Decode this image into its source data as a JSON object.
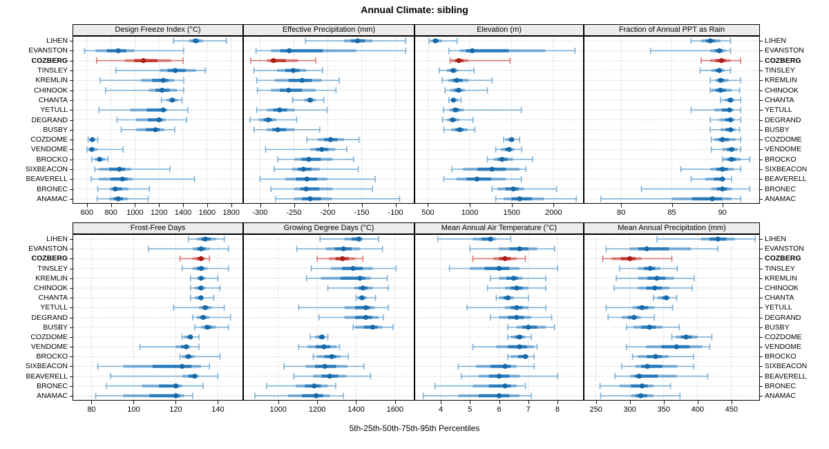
{
  "title": "Annual Climate: sibling",
  "footer": "5th-25th-50th-75th-95th Percentiles",
  "colors": {
    "normal": {
      "whisker": "#6fa8d4",
      "bar": "#2b7bba",
      "dot": "#1668a7"
    },
    "highlight": {
      "whisker": "#d26a62",
      "bar": "#c53a32",
      "dot": "#a81d15"
    },
    "grid": "#bdbdbd",
    "strip_bg": "#ececec",
    "border": "#000000"
  },
  "chart_data": {
    "type": "dot-interval (5th-25th-50th-75th-95th percentile ranges per location)",
    "percentiles": [
      5,
      25,
      50,
      75,
      95
    ],
    "legend_position": "none",
    "grid": "dashed",
    "highlight": "COZBERG",
    "locations": [
      "LIHEN",
      "EVANSTON",
      "COZBERG",
      "TINSLEY",
      "KREMLIN",
      "CHINOOK",
      "CHANTA",
      "YETULL",
      "DEGRAND",
      "BUSBY",
      "COZDOME",
      "VENDOME",
      "BROCKO",
      "SIXBEACON",
      "BEAVERELL",
      "BRONEC",
      "ANAMAC"
    ],
    "panels": [
      {
        "title": "Design Freeze Index (°C)",
        "grid_row": 0,
        "xlim": [
          480,
          1900
        ],
        "ticks": [
          600,
          800,
          1000,
          1200,
          1400,
          1600,
          1800
        ],
        "values": {
          "LIHEN": [
            1320,
            1450,
            1505,
            1565,
            1760
          ],
          "EVANSTON": [
            580,
            670,
            860,
            995,
            1405
          ],
          "COZBERG": [
            680,
            915,
            1070,
            1300,
            1400
          ],
          "TINSLEY": [
            840,
            1205,
            1335,
            1505,
            1585
          ],
          "KREMLIN": [
            710,
            1050,
            1235,
            1325,
            1405
          ],
          "CHINOOK": [
            755,
            1115,
            1225,
            1350,
            1405
          ],
          "CHANTA": [
            1220,
            1265,
            1310,
            1355,
            1390
          ],
          "YETULL": [
            700,
            960,
            1235,
            1270,
            1440
          ],
          "DEGRAND": [
            850,
            1010,
            1200,
            1255,
            1430
          ],
          "BUSBY": [
            885,
            1010,
            1170,
            1245,
            1330
          ],
          "COZDOME": [
            610,
            620,
            645,
            670,
            690
          ],
          "VENDOME": [
            600,
            610,
            640,
            685,
            900
          ],
          "BROCKO": [
            640,
            665,
            705,
            750,
            775
          ],
          "SIXBEACON": [
            665,
            700,
            870,
            965,
            1290
          ],
          "BEAVERELL": [
            635,
            700,
            895,
            980,
            1495
          ],
          "BRONEC": [
            690,
            790,
            835,
            945,
            1120
          ],
          "ANAMAC": [
            685,
            785,
            860,
            940,
            1110
          ]
        }
      },
      {
        "title": "Effective Precipitation (mm)",
        "grid_row": 0,
        "xlim": [
          -325,
          -72
        ],
        "ticks": [
          -300,
          -250,
          -200,
          -150,
          -100
        ],
        "values": {
          "LIHEN": [
            -233,
            -176,
            -156,
            -134,
            -85
          ],
          "EVANSTON": [
            -306,
            -284,
            -257,
            -158,
            -85
          ],
          "COZBERG": [
            -314,
            -290,
            -280,
            -244,
            -218
          ],
          "TINSLEY": [
            -309,
            -275,
            -251,
            -232,
            -208
          ],
          "KREMLIN": [
            -305,
            -278,
            -238,
            -209,
            -183
          ],
          "CHINOOK": [
            -304,
            -284,
            -258,
            -218,
            -188
          ],
          "CHANTA": [
            -252,
            -235,
            -226,
            -218,
            -206
          ],
          "YETULL": [
            -305,
            -290,
            -271,
            -249,
            -201
          ],
          "DEGRAND": [
            -315,
            -302,
            -288,
            -276,
            -246
          ],
          "BUSBY": [
            -309,
            -290,
            -274,
            -249,
            -212
          ],
          "COZDOME": [
            -231,
            -215,
            -196,
            -176,
            -154
          ],
          "VENDOME": [
            -292,
            -226,
            -209,
            -189,
            -172
          ],
          "BROCKO": [
            -274,
            -249,
            -228,
            -193,
            -162
          ],
          "SIXBEACON": [
            -279,
            -253,
            -236,
            -212,
            -155
          ],
          "BEAVERELL": [
            -300,
            -263,
            -231,
            -201,
            -130
          ],
          "BRONEC": [
            -284,
            -249,
            -232,
            -193,
            -134
          ],
          "ANAMAC": [
            -277,
            -250,
            -226,
            -194,
            -94
          ]
        }
      },
      {
        "title": "Elevation (m)",
        "grid_row": 0,
        "xlim": [
          340,
          2360
        ],
        "ticks": [
          500,
          1000,
          1500,
          2000
        ],
        "values": {
          "LIHEN": [
            515,
            535,
            590,
            665,
            850
          ],
          "EVANSTON": [
            750,
            880,
            1030,
            1900,
            2255
          ],
          "COZBERG": [
            765,
            780,
            870,
            980,
            1480
          ],
          "TINSLEY": [
            635,
            725,
            805,
            860,
            1050
          ],
          "KREMLIN": [
            670,
            745,
            845,
            985,
            1265
          ],
          "CHINOOK": [
            705,
            765,
            865,
            940,
            1210
          ],
          "CHANTA": [
            750,
            770,
            805,
            860,
            895
          ],
          "YETULL": [
            685,
            755,
            830,
            925,
            1615
          ],
          "DEGRAND": [
            675,
            730,
            795,
            875,
            1040
          ],
          "BUSBY": [
            690,
            780,
            880,
            975,
            1060
          ],
          "COZDOME": [
            1405,
            1430,
            1500,
            1530,
            1595
          ],
          "VENDOME": [
            1310,
            1370,
            1470,
            1530,
            1620
          ],
          "BROCKO": [
            1210,
            1285,
            1385,
            1515,
            1750
          ],
          "SIXBEACON": [
            785,
            920,
            1265,
            1595,
            1670
          ],
          "BEAVERELL": [
            690,
            840,
            1085,
            1425,
            1615
          ],
          "BRONEC": [
            1265,
            1330,
            1520,
            1645,
            2035
          ],
          "ANAMAC": [
            1310,
            1405,
            1595,
            1885,
            2270
          ]
        }
      },
      {
        "title": "Fraction of Annual PPT as Rain",
        "grid_row": 0,
        "xlim": [
          76.3,
          93.7
        ],
        "ticks": [
          80,
          85,
          90
        ],
        "values": {
          "LIHEN": [
            86.9,
            87.9,
            88.8,
            89.8,
            90.8
          ],
          "EVANSTON": [
            82.9,
            88.8,
            89.7,
            90.3,
            90.8
          ],
          "COZBERG": [
            87.9,
            88.8,
            89.9,
            90.8,
            91.8
          ],
          "TINSLEY": [
            87.8,
            88.9,
            89.7,
            90.2,
            90.8
          ],
          "KREMLIN": [
            88.8,
            89.3,
            89.8,
            90.6,
            91.8
          ],
          "CHINOOK": [
            88.8,
            88.9,
            89.8,
            90.9,
            91.7
          ],
          "CHANTA": [
            89.8,
            90.2,
            90.8,
            91.2,
            91.8
          ],
          "YETULL": [
            86.9,
            89.2,
            90.7,
            91.1,
            91.8
          ],
          "DEGRAND": [
            88.8,
            89.7,
            90.8,
            91.2,
            91.8
          ],
          "BUSBY": [
            88.8,
            89.8,
            90.8,
            91.3,
            91.7
          ],
          "COZDOME": [
            88.9,
            89.2,
            90.0,
            91.3,
            91.8
          ],
          "VENDOME": [
            88.9,
            90.0,
            90.9,
            91.5,
            91.8
          ],
          "BROCKO": [
            90.0,
            90.1,
            90.9,
            91.8,
            92.7
          ],
          "SIXBEACON": [
            85.9,
            88.8,
            90.0,
            91.1,
            91.8
          ],
          "BEAVERELL": [
            86.9,
            88.3,
            90.0,
            90.3,
            90.9
          ],
          "BRONEC": [
            82.0,
            88.9,
            90.0,
            90.9,
            92.7
          ],
          "ANAMAC": [
            78.0,
            85.0,
            89.0,
            90.9,
            91.8
          ]
        }
      },
      {
        "title": "Frost-Free Days",
        "grid_row": 1,
        "xlim": [
          71,
          152
        ],
        "ticks": [
          80,
          100,
          120,
          140
        ],
        "values": {
          "LIHEN": [
            126,
            130,
            134,
            139,
            143
          ],
          "EVANSTON": [
            107,
            128,
            132,
            136,
            145
          ],
          "COZBERG": [
            122,
            128,
            132,
            134,
            136
          ],
          "TINSLEY": [
            123,
            128,
            132,
            135,
            145
          ],
          "KREMLIN": [
            127,
            130,
            132,
            134,
            140
          ],
          "CHINOOK": [
            127,
            129,
            132,
            134,
            141
          ],
          "CHANTA": [
            127,
            129,
            132,
            133,
            138
          ],
          "YETULL": [
            119,
            131,
            134,
            137,
            143
          ],
          "DEGRAND": [
            128,
            130,
            133,
            136,
            146
          ],
          "BUSBY": [
            129,
            132,
            135,
            139,
            145
          ],
          "COZDOME": [
            123,
            124,
            127,
            128,
            131
          ],
          "VENDOME": [
            103,
            120,
            125,
            127,
            131
          ],
          "BROCKO": [
            122,
            123,
            126,
            129,
            141
          ],
          "SIXBEACON": [
            83,
            95,
            123,
            132,
            136
          ],
          "BEAVERELL": [
            89,
            123,
            129,
            131,
            140
          ],
          "BRONEC": [
            87,
            104,
            120,
            123,
            133
          ],
          "ANAMAC": [
            82,
            95,
            120,
            124,
            128
          ]
        }
      },
      {
        "title": "Growing Degree Days (°C)",
        "grid_row": 1,
        "xlim": [
          820,
          1700
        ],
        "ticks": [
          1000,
          1200,
          1400,
          1600
        ],
        "values": {
          "LIHEN": [
            1215,
            1340,
            1415,
            1435,
            1515
          ],
          "EVANSTON": [
            1095,
            1245,
            1335,
            1420,
            1535
          ],
          "COZBERG": [
            1200,
            1260,
            1330,
            1395,
            1435
          ],
          "TINSLEY": [
            1170,
            1270,
            1385,
            1485,
            1605
          ],
          "KREMLIN": [
            1145,
            1220,
            1420,
            1475,
            1560
          ],
          "CHINOOK": [
            1255,
            1390,
            1435,
            1485,
            1565
          ],
          "CHANTA": [
            1400,
            1405,
            1430,
            1455,
            1500
          ],
          "YETULL": [
            1105,
            1340,
            1450,
            1495,
            1565
          ],
          "DEGRAND": [
            1210,
            1340,
            1450,
            1515,
            1540
          ],
          "BUSBY": [
            1385,
            1395,
            1485,
            1535,
            1590
          ],
          "COZDOME": [
            1165,
            1190,
            1225,
            1240,
            1255
          ],
          "VENDOME": [
            1105,
            1150,
            1235,
            1300,
            1315
          ],
          "BROCKO": [
            1180,
            1200,
            1275,
            1320,
            1360
          ],
          "SIXBEACON": [
            1030,
            1140,
            1240,
            1355,
            1440
          ],
          "BEAVERELL": [
            1080,
            1180,
            1265,
            1350,
            1475
          ],
          "BRONEC": [
            940,
            1090,
            1185,
            1255,
            1295
          ],
          "ANAMAC": [
            880,
            1050,
            1195,
            1265,
            1335
          ]
        }
      },
      {
        "title": "Mean Annual Air Temperature (°C)",
        "grid_row": 1,
        "xlim": [
          3.1,
          8.9
        ],
        "ticks": [
          4,
          5,
          6,
          7,
          8
        ],
        "values": {
          "LIHEN": [
            3.9,
            5.1,
            5.7,
            5.9,
            6.4
          ],
          "EVANSTON": [
            5.0,
            6.0,
            6.7,
            7.3,
            7.9
          ],
          "COZBERG": [
            5.1,
            5.8,
            6.2,
            6.6,
            6.9
          ],
          "TINSLEY": [
            4.3,
            5.0,
            6.0,
            6.7,
            8.0
          ],
          "KREMLIN": [
            5.7,
            6.0,
            6.5,
            6.8,
            7.6
          ],
          "CHINOOK": [
            5.6,
            6.2,
            6.6,
            7.0,
            7.6
          ],
          "CHANTA": [
            5.9,
            6.0,
            6.3,
            6.5,
            7.0
          ],
          "YETULL": [
            4.9,
            6.2,
            6.6,
            7.0,
            7.6
          ],
          "DEGRAND": [
            5.7,
            6.0,
            6.6,
            7.1,
            7.8
          ],
          "BUSBY": [
            6.3,
            6.6,
            7.0,
            7.6,
            7.9
          ],
          "COZDOME": [
            6.3,
            6.4,
            6.7,
            6.9,
            7.1
          ],
          "VENDOME": [
            5.1,
            5.9,
            6.7,
            7.2,
            7.3
          ],
          "BROCKO": [
            6.3,
            6.4,
            6.9,
            7.0,
            7.2
          ],
          "SIXBEACON": [
            4.6,
            5.2,
            6.2,
            6.6,
            7.2
          ],
          "BEAVERELL": [
            4.7,
            5.3,
            6.0,
            6.7,
            8.0
          ],
          "BRONEC": [
            3.8,
            5.1,
            6.2,
            6.6,
            6.9
          ],
          "ANAMAC": [
            3.4,
            4.6,
            6.0,
            6.7,
            7.1
          ]
        }
      },
      {
        "title": "Mean Annual Precipitation (mm)",
        "grid_row": 1,
        "xlim": [
          232,
          492
        ],
        "ticks": [
          250,
          300,
          350,
          400,
          450
        ],
        "values": {
          "LIHEN": [
            340,
            405,
            430,
            455,
            485
          ],
          "EVANSTON": [
            265,
            300,
            325,
            390,
            430
          ],
          "COZBERG": [
            260,
            273,
            300,
            317,
            362
          ],
          "TINSLEY": [
            285,
            312,
            330,
            345,
            370
          ],
          "KREMLIN": [
            280,
            312,
            340,
            365,
            395
          ],
          "CHINOOK": [
            277,
            312,
            337,
            358,
            392
          ],
          "CHANTA": [
            335,
            341,
            354,
            359,
            369
          ],
          "YETULL": [
            265,
            304,
            318,
            336,
            363
          ],
          "DEGRAND": [
            268,
            288,
            306,
            316,
            336
          ],
          "BUSBY": [
            295,
            305,
            329,
            348,
            373
          ],
          "COZDOME": [
            362,
            368,
            383,
            400,
            421
          ],
          "VENDOME": [
            295,
            324,
            369,
            407,
            418
          ],
          "BROCKO": [
            304,
            312,
            338,
            357,
            394
          ],
          "SIXBEACON": [
            288,
            308,
            326,
            370,
            394
          ],
          "BEAVERELL": [
            278,
            301,
            314,
            369,
            415
          ],
          "BRONEC": [
            256,
            285,
            318,
            335,
            360
          ],
          "ANAMAC": [
            257,
            302,
            316,
            335,
            374
          ]
        }
      }
    ]
  }
}
